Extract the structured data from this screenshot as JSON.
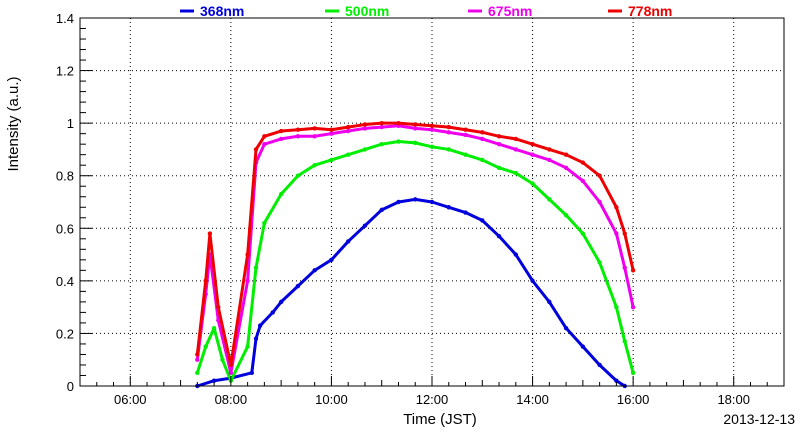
{
  "chart_data": {
    "type": "scatter",
    "title": "",
    "xlabel": "Time (JST)",
    "ylabel": "Intensity (a.u.)",
    "date": "2013-12-13",
    "xlim": [
      "05:00",
      "19:00"
    ],
    "ylim": [
      0,
      1.4
    ],
    "x_ticks": [
      "06:00",
      "08:00",
      "10:00",
      "12:00",
      "14:00",
      "16:00",
      "18:00"
    ],
    "y_ticks": [
      "0",
      "0.2",
      "0.4",
      "0.6",
      "0.8",
      "1",
      "1.2",
      "1.4"
    ],
    "grid": true,
    "legend_position": "top",
    "series": [
      {
        "name": "368nm",
        "color": "#0000dd",
        "points": [
          [
            "07:20",
            0.0
          ],
          [
            "07:40",
            0.02
          ],
          [
            "08:00",
            0.03
          ],
          [
            "08:25",
            0.05
          ],
          [
            "08:30",
            0.18
          ],
          [
            "08:35",
            0.23
          ],
          [
            "08:50",
            0.28
          ],
          [
            "09:00",
            0.32
          ],
          [
            "09:20",
            0.38
          ],
          [
            "09:40",
            0.44
          ],
          [
            "10:00",
            0.48
          ],
          [
            "10:20",
            0.55
          ],
          [
            "10:40",
            0.61
          ],
          [
            "11:00",
            0.67
          ],
          [
            "11:20",
            0.7
          ],
          [
            "11:40",
            0.71
          ],
          [
            "12:00",
            0.7
          ],
          [
            "12:20",
            0.68
          ],
          [
            "12:40",
            0.66
          ],
          [
            "13:00",
            0.63
          ],
          [
            "13:20",
            0.57
          ],
          [
            "13:40",
            0.5
          ],
          [
            "14:00",
            0.4
          ],
          [
            "14:20",
            0.32
          ],
          [
            "14:40",
            0.22
          ],
          [
            "15:00",
            0.15
          ],
          [
            "15:20",
            0.08
          ],
          [
            "15:40",
            0.02
          ],
          [
            "15:50",
            0.0
          ]
        ]
      },
      {
        "name": "500nm",
        "color": "#00ee00",
        "points": [
          [
            "07:20",
            0.05
          ],
          [
            "07:30",
            0.15
          ],
          [
            "07:40",
            0.22
          ],
          [
            "07:50",
            0.1
          ],
          [
            "08:00",
            0.02
          ],
          [
            "08:20",
            0.15
          ],
          [
            "08:30",
            0.45
          ],
          [
            "08:40",
            0.62
          ],
          [
            "09:00",
            0.73
          ],
          [
            "09:20",
            0.8
          ],
          [
            "09:40",
            0.84
          ],
          [
            "10:00",
            0.86
          ],
          [
            "10:20",
            0.88
          ],
          [
            "10:40",
            0.9
          ],
          [
            "11:00",
            0.92
          ],
          [
            "11:20",
            0.93
          ],
          [
            "11:40",
            0.925
          ],
          [
            "12:00",
            0.91
          ],
          [
            "12:20",
            0.9
          ],
          [
            "12:40",
            0.88
          ],
          [
            "13:00",
            0.86
          ],
          [
            "13:20",
            0.83
          ],
          [
            "13:40",
            0.81
          ],
          [
            "14:00",
            0.77
          ],
          [
            "14:20",
            0.71
          ],
          [
            "14:40",
            0.65
          ],
          [
            "15:00",
            0.58
          ],
          [
            "15:20",
            0.47
          ],
          [
            "15:40",
            0.3
          ],
          [
            "15:50",
            0.17
          ],
          [
            "16:00",
            0.05
          ]
        ]
      },
      {
        "name": "675nm",
        "color": "#ee00ee",
        "points": [
          [
            "07:20",
            0.1
          ],
          [
            "07:30",
            0.35
          ],
          [
            "07:35",
            0.5
          ],
          [
            "07:45",
            0.25
          ],
          [
            "08:00",
            0.05
          ],
          [
            "08:20",
            0.4
          ],
          [
            "08:30",
            0.85
          ],
          [
            "08:40",
            0.92
          ],
          [
            "09:00",
            0.94
          ],
          [
            "09:20",
            0.95
          ],
          [
            "09:40",
            0.95
          ],
          [
            "10:00",
            0.96
          ],
          [
            "10:20",
            0.97
          ],
          [
            "10:40",
            0.98
          ],
          [
            "11:00",
            0.985
          ],
          [
            "11:20",
            0.99
          ],
          [
            "11:40",
            0.98
          ],
          [
            "12:00",
            0.975
          ],
          [
            "12:20",
            0.965
          ],
          [
            "12:40",
            0.955
          ],
          [
            "13:00",
            0.94
          ],
          [
            "13:20",
            0.92
          ],
          [
            "13:40",
            0.9
          ],
          [
            "14:00",
            0.88
          ],
          [
            "14:20",
            0.86
          ],
          [
            "14:40",
            0.83
          ],
          [
            "15:00",
            0.78
          ],
          [
            "15:20",
            0.7
          ],
          [
            "15:40",
            0.58
          ],
          [
            "15:50",
            0.45
          ],
          [
            "16:00",
            0.3
          ]
        ]
      },
      {
        "name": "778nm",
        "color": "#ee0000",
        "points": [
          [
            "07:20",
            0.12
          ],
          [
            "07:30",
            0.4
          ],
          [
            "07:35",
            0.58
          ],
          [
            "07:45",
            0.3
          ],
          [
            "08:00",
            0.08
          ],
          [
            "08:20",
            0.5
          ],
          [
            "08:30",
            0.9
          ],
          [
            "08:40",
            0.95
          ],
          [
            "09:00",
            0.97
          ],
          [
            "09:20",
            0.975
          ],
          [
            "09:40",
            0.98
          ],
          [
            "10:00",
            0.975
          ],
          [
            "10:20",
            0.985
          ],
          [
            "10:40",
            0.995
          ],
          [
            "11:00",
            1.0
          ],
          [
            "11:20",
            1.0
          ],
          [
            "11:40",
            0.995
          ],
          [
            "12:00",
            0.99
          ],
          [
            "12:20",
            0.985
          ],
          [
            "12:40",
            0.975
          ],
          [
            "13:00",
            0.965
          ],
          [
            "13:20",
            0.95
          ],
          [
            "13:40",
            0.94
          ],
          [
            "14:00",
            0.92
          ],
          [
            "14:20",
            0.9
          ],
          [
            "14:40",
            0.88
          ],
          [
            "15:00",
            0.85
          ],
          [
            "15:20",
            0.8
          ],
          [
            "15:40",
            0.68
          ],
          [
            "15:50",
            0.58
          ],
          [
            "16:00",
            0.44
          ]
        ]
      }
    ]
  }
}
